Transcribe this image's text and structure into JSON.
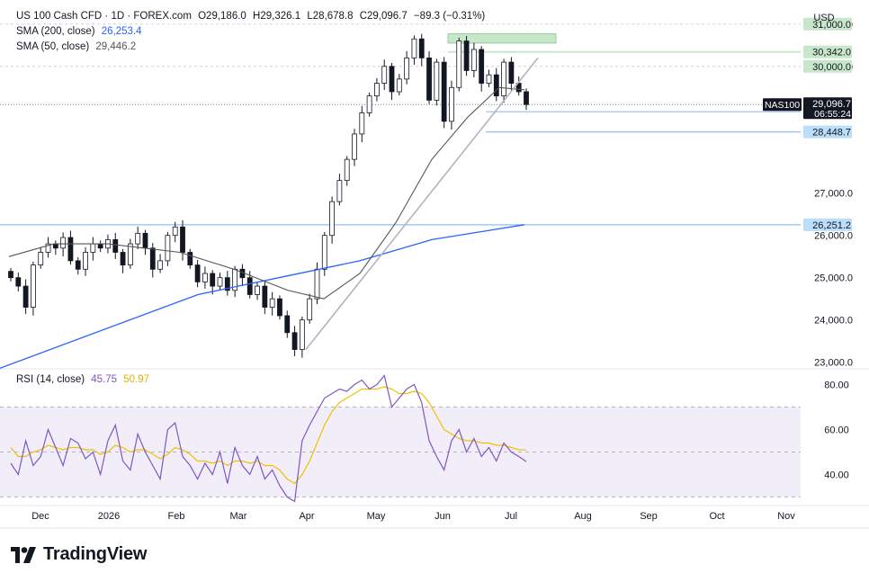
{
  "header": {
    "instrument": "US 100 Cash CFD · 1D · FOREX.com",
    "open": "O29,186.0",
    "high": "H29,326.1",
    "low": "L28,678.8",
    "close": "C29,096.7",
    "change": "−89.3 (−0.31%)",
    "currency": "USD"
  },
  "indicators": {
    "sma200_label": "SMA (200, close)",
    "sma200_value": "26,253.4",
    "sma50_label": "SMA (50, close)",
    "sma50_value": "29,446.2",
    "rsi_label": "RSI (14, close)",
    "rsi_value": "45.75",
    "rsi_ma_value": "50.97"
  },
  "price_labels": {
    "ticker": "NAS100",
    "last": "29,096.7",
    "countdown": "06:55:24",
    "levels": [
      "31,000.0",
      "30,342.0",
      "30,000.0",
      "28,927.1",
      "28,448.7",
      "26,251.2"
    ]
  },
  "brand": {
    "name": "TradingView"
  },
  "colors": {
    "up": "#089981",
    "down": "#131722",
    "sma200": "#2962ff",
    "sma50": "#555555",
    "rsi": "#7e57c2",
    "rsi_ma": "#f0c000",
    "level_line": "#90bff9",
    "zone": "#c8e6c9"
  },
  "chart_data": [
    {
      "type": "candlestick",
      "title": "US 100 Cash CFD · 1D · FOREX.com",
      "x_tick_labels": [
        "Dec",
        "2026",
        "Feb",
        "Mar",
        "Apr",
        "May",
        "Jun",
        "Jul",
        "Aug",
        "Sep",
        "Oct",
        "Nov"
      ],
      "y_tick_labels": [
        "31,000.0",
        "30,000.0",
        "27,000.0",
        "26,000.0",
        "25,000.0",
        "24,000.0",
        "23,000.0"
      ],
      "ylim": [
        22950,
        31400
      ],
      "close_path": [
        25000,
        24800,
        24300,
        25300,
        25600,
        25800,
        25700,
        25950,
        25400,
        25200,
        25600,
        25800,
        25700,
        25900,
        25600,
        25300,
        25800,
        26050,
        25700,
        25200,
        25400,
        26000,
        26200,
        25600,
        25300,
        24900,
        25100,
        24800,
        25000,
        24700,
        25200,
        25000,
        24600,
        24800,
        24300,
        24500,
        24100,
        23700,
        23300,
        24000,
        24500,
        25200,
        26000,
        26800,
        27300,
        27800,
        28400,
        28900,
        29300,
        29600,
        30000,
        29400,
        29700,
        30200,
        30650,
        30200,
        29200,
        30100,
        28700,
        29500,
        30600,
        29900,
        30400,
        29600,
        29800,
        29300,
        30100,
        29600,
        29400,
        29096.7
      ],
      "sma200": [
        [
          -20,
          22700
        ],
        [
          220,
          24600
        ],
        [
          310,
          25000
        ],
        [
          400,
          25400
        ],
        [
          480,
          25900
        ],
        [
          583,
          26253.4
        ]
      ],
      "sma50": [
        [
          10,
          25500
        ],
        [
          60,
          25800
        ],
        [
          120,
          25800
        ],
        [
          200,
          25600
        ],
        [
          260,
          25200
        ],
        [
          320,
          24700
        ],
        [
          360,
          24500
        ],
        [
          400,
          25100
        ],
        [
          440,
          26300
        ],
        [
          480,
          27800
        ],
        [
          520,
          28800
        ],
        [
          555,
          29500
        ],
        [
          583,
          29446.2
        ]
      ],
      "trendline": [
        [
          340,
          23300
        ],
        [
          598,
          30200
        ]
      ],
      "levels": [
        31000,
        30342,
        30000,
        28927.1,
        28448.7,
        26251.2
      ],
      "resistance_zone": [
        30550,
        30770
      ],
      "last_price": 29096.7
    },
    {
      "type": "line",
      "title": "RSI (14, close)",
      "y_tick_labels": [
        "80.00",
        "60.00",
        "40.00"
      ],
      "ylim": [
        27,
        87
      ],
      "band": [
        30,
        70
      ],
      "midline": 50,
      "series": [
        {
          "name": "RSI",
          "values": [
            45,
            40,
            55,
            44,
            48,
            60,
            52,
            44,
            56,
            54,
            47,
            50,
            40,
            55,
            62,
            46,
            42,
            58,
            50,
            44,
            38,
            60,
            63,
            48,
            44,
            38,
            45,
            40,
            50,
            36,
            52,
            44,
            40,
            48,
            38,
            42,
            35,
            30,
            28,
            55,
            62,
            68,
            74,
            76,
            78,
            77,
            80,
            82,
            78,
            80,
            84,
            70,
            74,
            78,
            80,
            72,
            55,
            48,
            42,
            55,
            60,
            50,
            56,
            48,
            52,
            46,
            54,
            50,
            48,
            45.75
          ]
        },
        {
          "name": "RSI-MA",
          "values": [
            52,
            48,
            48,
            50,
            51,
            53,
            52,
            51,
            52,
            52,
            51,
            51,
            49,
            50,
            53,
            52,
            50,
            51,
            51,
            49,
            47,
            49,
            52,
            51,
            49,
            46,
            46,
            45,
            46,
            44,
            46,
            46,
            45,
            46,
            44,
            44,
            42,
            38,
            36,
            40,
            46,
            54,
            62,
            68,
            72,
            74,
            76,
            78,
            78,
            78,
            79,
            78,
            76,
            76,
            77,
            76,
            72,
            66,
            60,
            58,
            56,
            55,
            55,
            54,
            54,
            53,
            53,
            52,
            51,
            50.97
          ]
        }
      ]
    }
  ]
}
